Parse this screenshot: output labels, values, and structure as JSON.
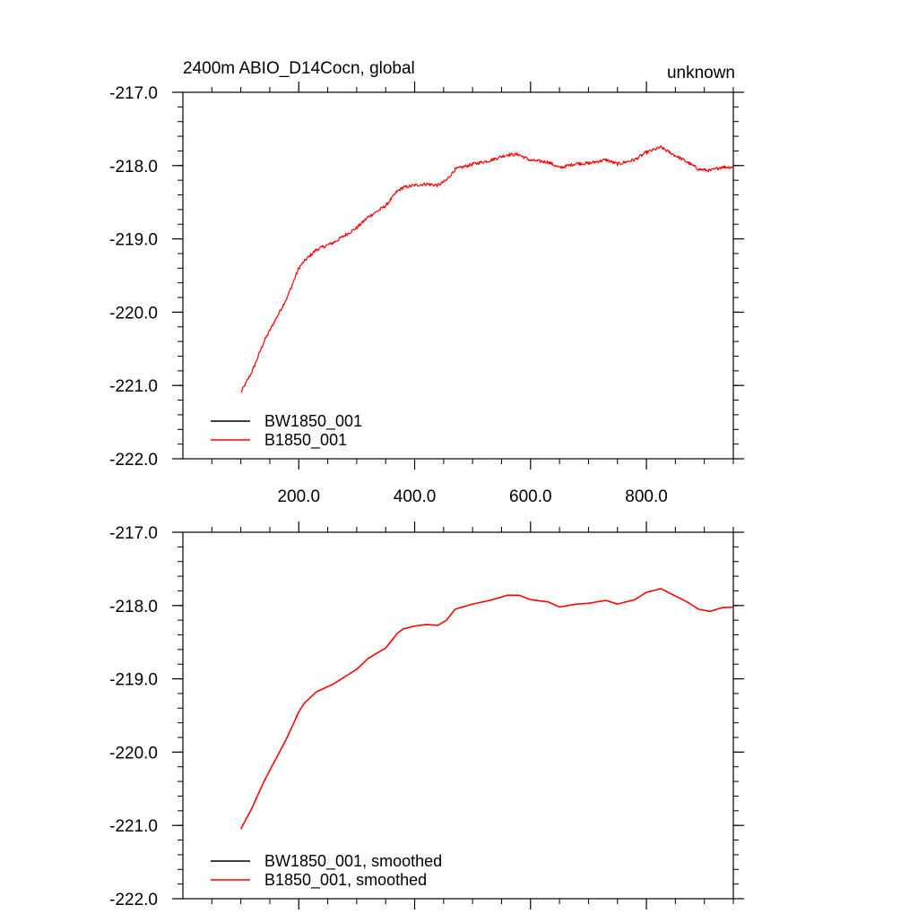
{
  "colors": {
    "series_1": "#000000",
    "series_2": "#ff0000",
    "axis": "#000000"
  },
  "chart_data": [
    {
      "type": "line",
      "title_left": "2400m ABIO_D14Cocn, global",
      "title_right": "unknown",
      "xlim": [
        0,
        950
      ],
      "ylim": [
        -222,
        -217
      ],
      "x_ticks": [
        200,
        400,
        600,
        800
      ],
      "x_tick_labels": [
        "200.0",
        "400.0",
        "600.0",
        "800.0"
      ],
      "y_ticks": [
        -222,
        -221,
        -220,
        -219,
        -218,
        -217
      ],
      "y_tick_labels": [
        "-222.0",
        "-221.0",
        "-220.0",
        "-219.0",
        "-218.0",
        "-217.0"
      ],
      "legend_position": "bottom-left",
      "noisy": true,
      "series": [
        {
          "name": "BW1850_001",
          "color": "#000000",
          "x": [],
          "y": []
        },
        {
          "name": "B1850_001",
          "color": "#ff0000",
          "x": [
            100,
            120,
            140,
            160,
            180,
            200,
            210,
            230,
            260,
            280,
            300,
            320,
            350,
            370,
            380,
            400,
            420,
            440,
            455,
            470,
            500,
            530,
            560,
            580,
            600,
            630,
            650,
            680,
            700,
            730,
            750,
            780,
            800,
            825,
            840,
            870,
            890,
            910,
            930,
            950
          ],
          "y": [
            -221.1,
            -220.8,
            -220.4,
            -220.1,
            -219.8,
            -219.4,
            -219.3,
            -219.15,
            -219.05,
            -218.95,
            -218.85,
            -218.7,
            -218.55,
            -218.35,
            -218.3,
            -218.27,
            -218.25,
            -218.27,
            -218.2,
            -218.05,
            -217.98,
            -217.93,
            -217.85,
            -217.85,
            -217.93,
            -217.95,
            -218.03,
            -217.97,
            -217.97,
            -217.92,
            -217.98,
            -217.92,
            -217.82,
            -217.75,
            -217.82,
            -217.95,
            -218.05,
            -218.07,
            -218.02,
            -218.02
          ]
        }
      ]
    },
    {
      "type": "line",
      "title_left": "",
      "title_right": "",
      "xlim": [
        0,
        950
      ],
      "ylim": [
        -222,
        -217
      ],
      "x_ticks": [
        200,
        400,
        600,
        800
      ],
      "x_tick_labels": [],
      "y_ticks": [
        -222,
        -221,
        -220,
        -219,
        -218,
        -217
      ],
      "y_tick_labels": [
        "-222.0",
        "-221.0",
        "-220.0",
        "-219.0",
        "-218.0",
        "-217.0"
      ],
      "legend_position": "bottom-left",
      "noisy": false,
      "series": [
        {
          "name": "BW1850_001, smoothed",
          "color": "#000000",
          "x": [],
          "y": []
        },
        {
          "name": "B1850_001, smoothed",
          "color": "#ff0000",
          "x": [
            100,
            120,
            140,
            160,
            180,
            200,
            210,
            230,
            260,
            280,
            300,
            320,
            350,
            370,
            380,
            400,
            420,
            440,
            455,
            470,
            500,
            530,
            560,
            580,
            600,
            630,
            650,
            680,
            700,
            730,
            750,
            780,
            800,
            825,
            840,
            870,
            890,
            910,
            930,
            950
          ],
          "y": [
            -221.05,
            -220.75,
            -220.4,
            -220.1,
            -219.8,
            -219.45,
            -219.33,
            -219.18,
            -219.07,
            -218.97,
            -218.87,
            -218.72,
            -218.58,
            -218.38,
            -218.32,
            -218.28,
            -218.26,
            -218.27,
            -218.2,
            -218.05,
            -217.98,
            -217.93,
            -217.86,
            -217.86,
            -217.92,
            -217.95,
            -218.02,
            -217.98,
            -217.97,
            -217.93,
            -217.98,
            -217.92,
            -217.82,
            -217.77,
            -217.83,
            -217.95,
            -218.05,
            -218.08,
            -218.03,
            -218.02
          ]
        }
      ]
    }
  ]
}
